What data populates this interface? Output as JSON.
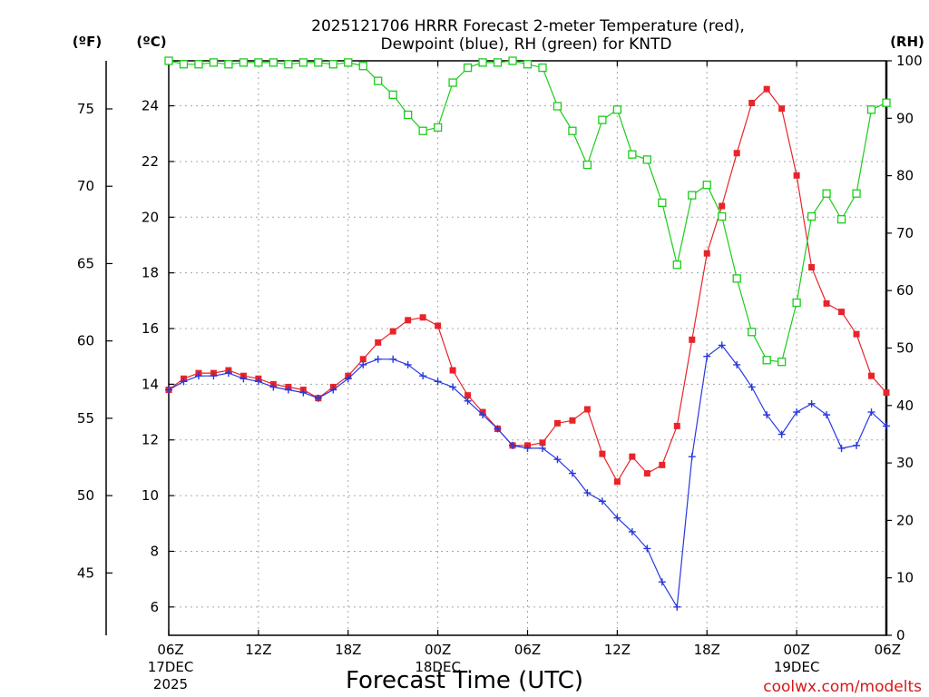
{
  "chart_data": {
    "type": "line",
    "title_lines": [
      "2025121706 HRRR Forecast 2-meter Temperature (red),",
      "Dewpoint (blue), RH (green) for KNTD"
    ],
    "xlabel": "Forecast Time (UTC)",
    "credit": "coolwx.com/modelts",
    "units": {
      "left_f": "(ºF)",
      "left_c": "(ºC)",
      "right_rh": "(RH)"
    },
    "x_ticks": [
      {
        "hour": 0,
        "line1": "06Z",
        "line2": "17DEC",
        "line3": "2025"
      },
      {
        "hour": 6,
        "line1": "12Z",
        "line2": "",
        "line3": ""
      },
      {
        "hour": 12,
        "line1": "18Z",
        "line2": "",
        "line3": ""
      },
      {
        "hour": 18,
        "line1": "00Z",
        "line2": "18DEC",
        "line3": ""
      },
      {
        "hour": 24,
        "line1": "06Z",
        "line2": "",
        "line3": ""
      },
      {
        "hour": 30,
        "line1": "12Z",
        "line2": "",
        "line3": ""
      },
      {
        "hour": 36,
        "line1": "18Z",
        "line2": "",
        "line3": ""
      },
      {
        "hour": 42,
        "line1": "00Z",
        "line2": "19DEC",
        "line3": ""
      },
      {
        "hour": 48,
        "line1": "06Z",
        "line2": "",
        "line3": ""
      }
    ],
    "xlim": [
      0,
      48
    ],
    "ylim_c": [
      5,
      25.6
    ],
    "ylim_rh": [
      0,
      100
    ],
    "yticks_c": [
      6,
      8,
      10,
      12,
      14,
      16,
      18,
      20,
      22,
      24
    ],
    "yticks_f": [
      45,
      50,
      55,
      60,
      65,
      70,
      75
    ],
    "yticks_rh": [
      0,
      10,
      20,
      30,
      40,
      50,
      60,
      70,
      80,
      90,
      100
    ],
    "grid": true,
    "series": [
      {
        "name": "Temperature",
        "color": "#e8242a",
        "marker": "filled-square",
        "axis": "c",
        "values": [
          13.8,
          14.2,
          14.4,
          14.4,
          14.5,
          14.3,
          14.2,
          14.0,
          13.9,
          13.8,
          13.5,
          13.9,
          14.3,
          14.9,
          15.5,
          15.9,
          16.3,
          16.4,
          16.1,
          14.5,
          13.6,
          13.0,
          12.4,
          11.8,
          11.8,
          11.9,
          12.6,
          12.7,
          13.1,
          11.5,
          10.5,
          11.4,
          10.8,
          11.1,
          12.5,
          15.6,
          18.7,
          20.4,
          22.3,
          24.1,
          24.6,
          23.9,
          21.5,
          18.2,
          16.9,
          16.6,
          15.8,
          14.3,
          13.7
        ]
      },
      {
        "name": "Dewpoint",
        "color": "#2838e0",
        "marker": "plus",
        "axis": "c",
        "values": [
          13.8,
          14.1,
          14.3,
          14.3,
          14.4,
          14.2,
          14.1,
          13.9,
          13.8,
          13.7,
          13.5,
          13.8,
          14.2,
          14.7,
          14.9,
          14.9,
          14.7,
          14.3,
          14.1,
          13.9,
          13.4,
          12.9,
          12.4,
          11.8,
          11.7,
          11.7,
          11.3,
          10.8,
          10.1,
          9.8,
          9.2,
          8.7,
          8.1,
          6.9,
          6.0,
          11.4,
          15.0,
          15.4,
          14.7,
          13.9,
          12.9,
          12.2,
          13.0,
          13.3,
          12.9,
          11.7,
          11.8,
          13.0,
          12.5
        ]
      },
      {
        "name": "RH",
        "color": "#1ccc1c",
        "marker": "open-square",
        "axis": "rh",
        "values": [
          100,
          99.4,
          99.4,
          99.7,
          99.4,
          99.7,
          99.7,
          99.7,
          99.4,
          99.7,
          99.7,
          99.4,
          99.7,
          99.1,
          96.5,
          94.1,
          90.6,
          87.8,
          88.4,
          96.2,
          98.8,
          99.7,
          99.7,
          100,
          99.4,
          98.8,
          92.1,
          87.8,
          81.9,
          89.7,
          91.5,
          83.7,
          82.8,
          75.3,
          64.5,
          76.6,
          78.4,
          72.9,
          62.1,
          52.8,
          47.9,
          47.6,
          57.9,
          72.9,
          76.9,
          72.4,
          76.9,
          91.5,
          92.7
        ]
      }
    ]
  }
}
